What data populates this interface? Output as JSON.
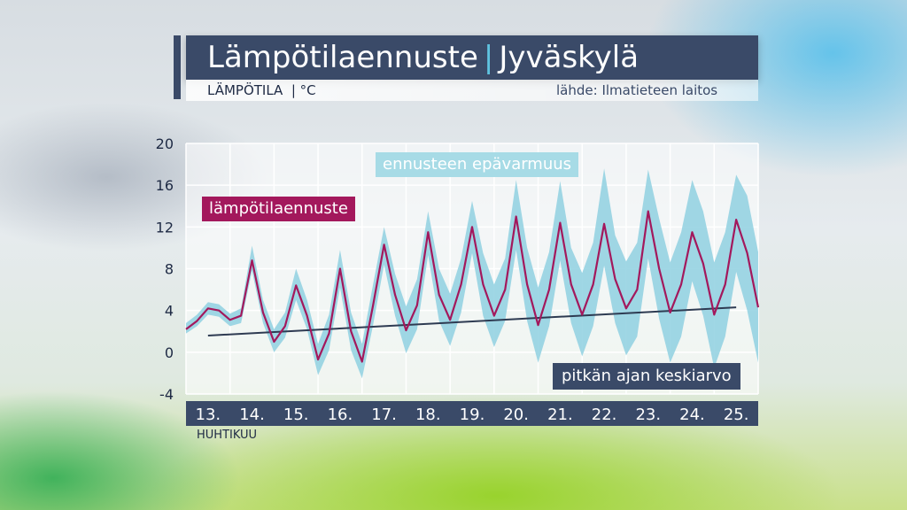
{
  "header": {
    "title_main": "Lämpötilaennuste",
    "title_sep": "|",
    "title_city": "Jyväskylä",
    "subtitle_left": "LÄMPÖTILA  | °C",
    "source": "lähde: Ilmatieteen laitos"
  },
  "month_label": "HUHTIKUU",
  "colors": {
    "forecast": "#a3185c",
    "uncertainty": "#8fd0e0",
    "mean": "#2e3b52",
    "axis_bar": "#3a4a68"
  },
  "chart_data": {
    "type": "line",
    "legend": {
      "forecast": "lämpötilaennuste",
      "uncertainty": "ennusteen epävarmuus",
      "mean": "pitkän ajan keskiarvo"
    },
    "ylim": [
      -4,
      20
    ],
    "yticks": [
      -4,
      0,
      4,
      8,
      12,
      16,
      20
    ],
    "xlim": [
      0,
      13
    ],
    "xtick_positions": [
      0.5,
      1.5,
      2.5,
      3.5,
      4.5,
      5.5,
      6.5,
      7.5,
      8.5,
      9.5,
      10.5,
      11.5,
      12.5
    ],
    "xtick_labels": [
      "13.",
      "14.",
      "15.",
      "16.",
      "17.",
      "18.",
      "19.",
      "20.",
      "21.",
      "22.",
      "23.",
      "24.",
      "25."
    ],
    "grid": true,
    "forecast": {
      "x": [
        0,
        0.25,
        0.5,
        0.75,
        1.0,
        1.25,
        1.5,
        1.75,
        2.0,
        2.25,
        2.5,
        2.75,
        3.0,
        3.25,
        3.5,
        3.75,
        4.0,
        4.25,
        4.5,
        4.75,
        5.0,
        5.25,
        5.5,
        5.75,
        6.0,
        6.25,
        6.5,
        6.75,
        7.0,
        7.25,
        7.5,
        7.75,
        8.0,
        8.25,
        8.5,
        8.75,
        9.0,
        9.25,
        9.5,
        9.75,
        10.0,
        10.25,
        10.5,
        10.75,
        11.0,
        11.25,
        11.5,
        11.75,
        12.0,
        12.25,
        12.5,
        12.75,
        13.0
      ],
      "y": [
        2.2,
        3.0,
        4.2,
        4.0,
        3.1,
        3.5,
        8.8,
        3.8,
        1.0,
        2.5,
        6.4,
        3.5,
        -0.7,
        1.8,
        8.0,
        2.0,
        -0.9,
        4.5,
        10.3,
        5.5,
        2.1,
        4.5,
        11.5,
        5.5,
        3.1,
        6.5,
        12.0,
        6.5,
        3.5,
        6.0,
        13.0,
        6.5,
        2.6,
        6.0,
        12.4,
        6.5,
        3.6,
        6.5,
        12.3,
        7.0,
        4.2,
        6.0,
        13.5,
        8.0,
        3.8,
        6.5,
        11.5,
        8.5,
        3.6,
        6.5,
        12.7,
        9.5,
        4.3
      ]
    },
    "uncertainty_band": {
      "x": [
        0,
        0.25,
        0.5,
        0.75,
        1.0,
        1.25,
        1.5,
        1.75,
        2.0,
        2.25,
        2.5,
        2.75,
        3.0,
        3.25,
        3.5,
        3.75,
        4.0,
        4.25,
        4.5,
        4.75,
        5.0,
        5.25,
        5.5,
        5.75,
        6.0,
        6.25,
        6.5,
        6.75,
        7.0,
        7.25,
        7.5,
        7.75,
        8.0,
        8.25,
        8.5,
        8.75,
        9.0,
        9.25,
        9.5,
        9.75,
        10.0,
        10.25,
        10.5,
        10.75,
        11.0,
        11.25,
        11.5,
        11.75,
        12.0,
        12.25,
        12.5,
        12.75,
        13.0
      ],
      "lower": [
        1.8,
        2.5,
        3.6,
        3.4,
        2.5,
        2.8,
        7.8,
        2.8,
        0.0,
        1.4,
        5.0,
        2.2,
        -2.2,
        0.2,
        6.2,
        0.2,
        -2.5,
        2.6,
        8.4,
        3.5,
        -0.1,
        2.2,
        9.3,
        3.0,
        0.6,
        3.8,
        9.5,
        3.5,
        0.5,
        3.0,
        9.8,
        3.0,
        -1.0,
        2.5,
        8.8,
        2.8,
        -0.4,
        2.5,
        8.3,
        2.8,
        -0.3,
        1.5,
        9.0,
        3.2,
        -1.0,
        1.5,
        6.8,
        3.5,
        -1.5,
        1.5,
        7.7,
        4.0,
        -1.0
      ],
      "upper": [
        2.8,
        3.6,
        4.8,
        4.6,
        3.7,
        4.2,
        10.2,
        5.0,
        2.2,
        3.8,
        8.0,
        5.0,
        0.8,
        3.6,
        9.8,
        3.8,
        0.8,
        6.5,
        12.0,
        7.5,
        4.4,
        7.0,
        13.5,
        8.0,
        5.6,
        9.0,
        14.5,
        9.5,
        6.5,
        9.0,
        16.5,
        10.0,
        6.2,
        9.6,
        16.4,
        10.0,
        7.6,
        10.5,
        17.6,
        11.2,
        8.7,
        10.5,
        17.5,
        12.8,
        8.6,
        11.5,
        16.5,
        13.5,
        8.6,
        11.5,
        17.0,
        15.0,
        9.6
      ]
    },
    "long_term_mean": {
      "x": [
        0.5,
        12.5
      ],
      "y": [
        1.6,
        4.3
      ]
    }
  }
}
